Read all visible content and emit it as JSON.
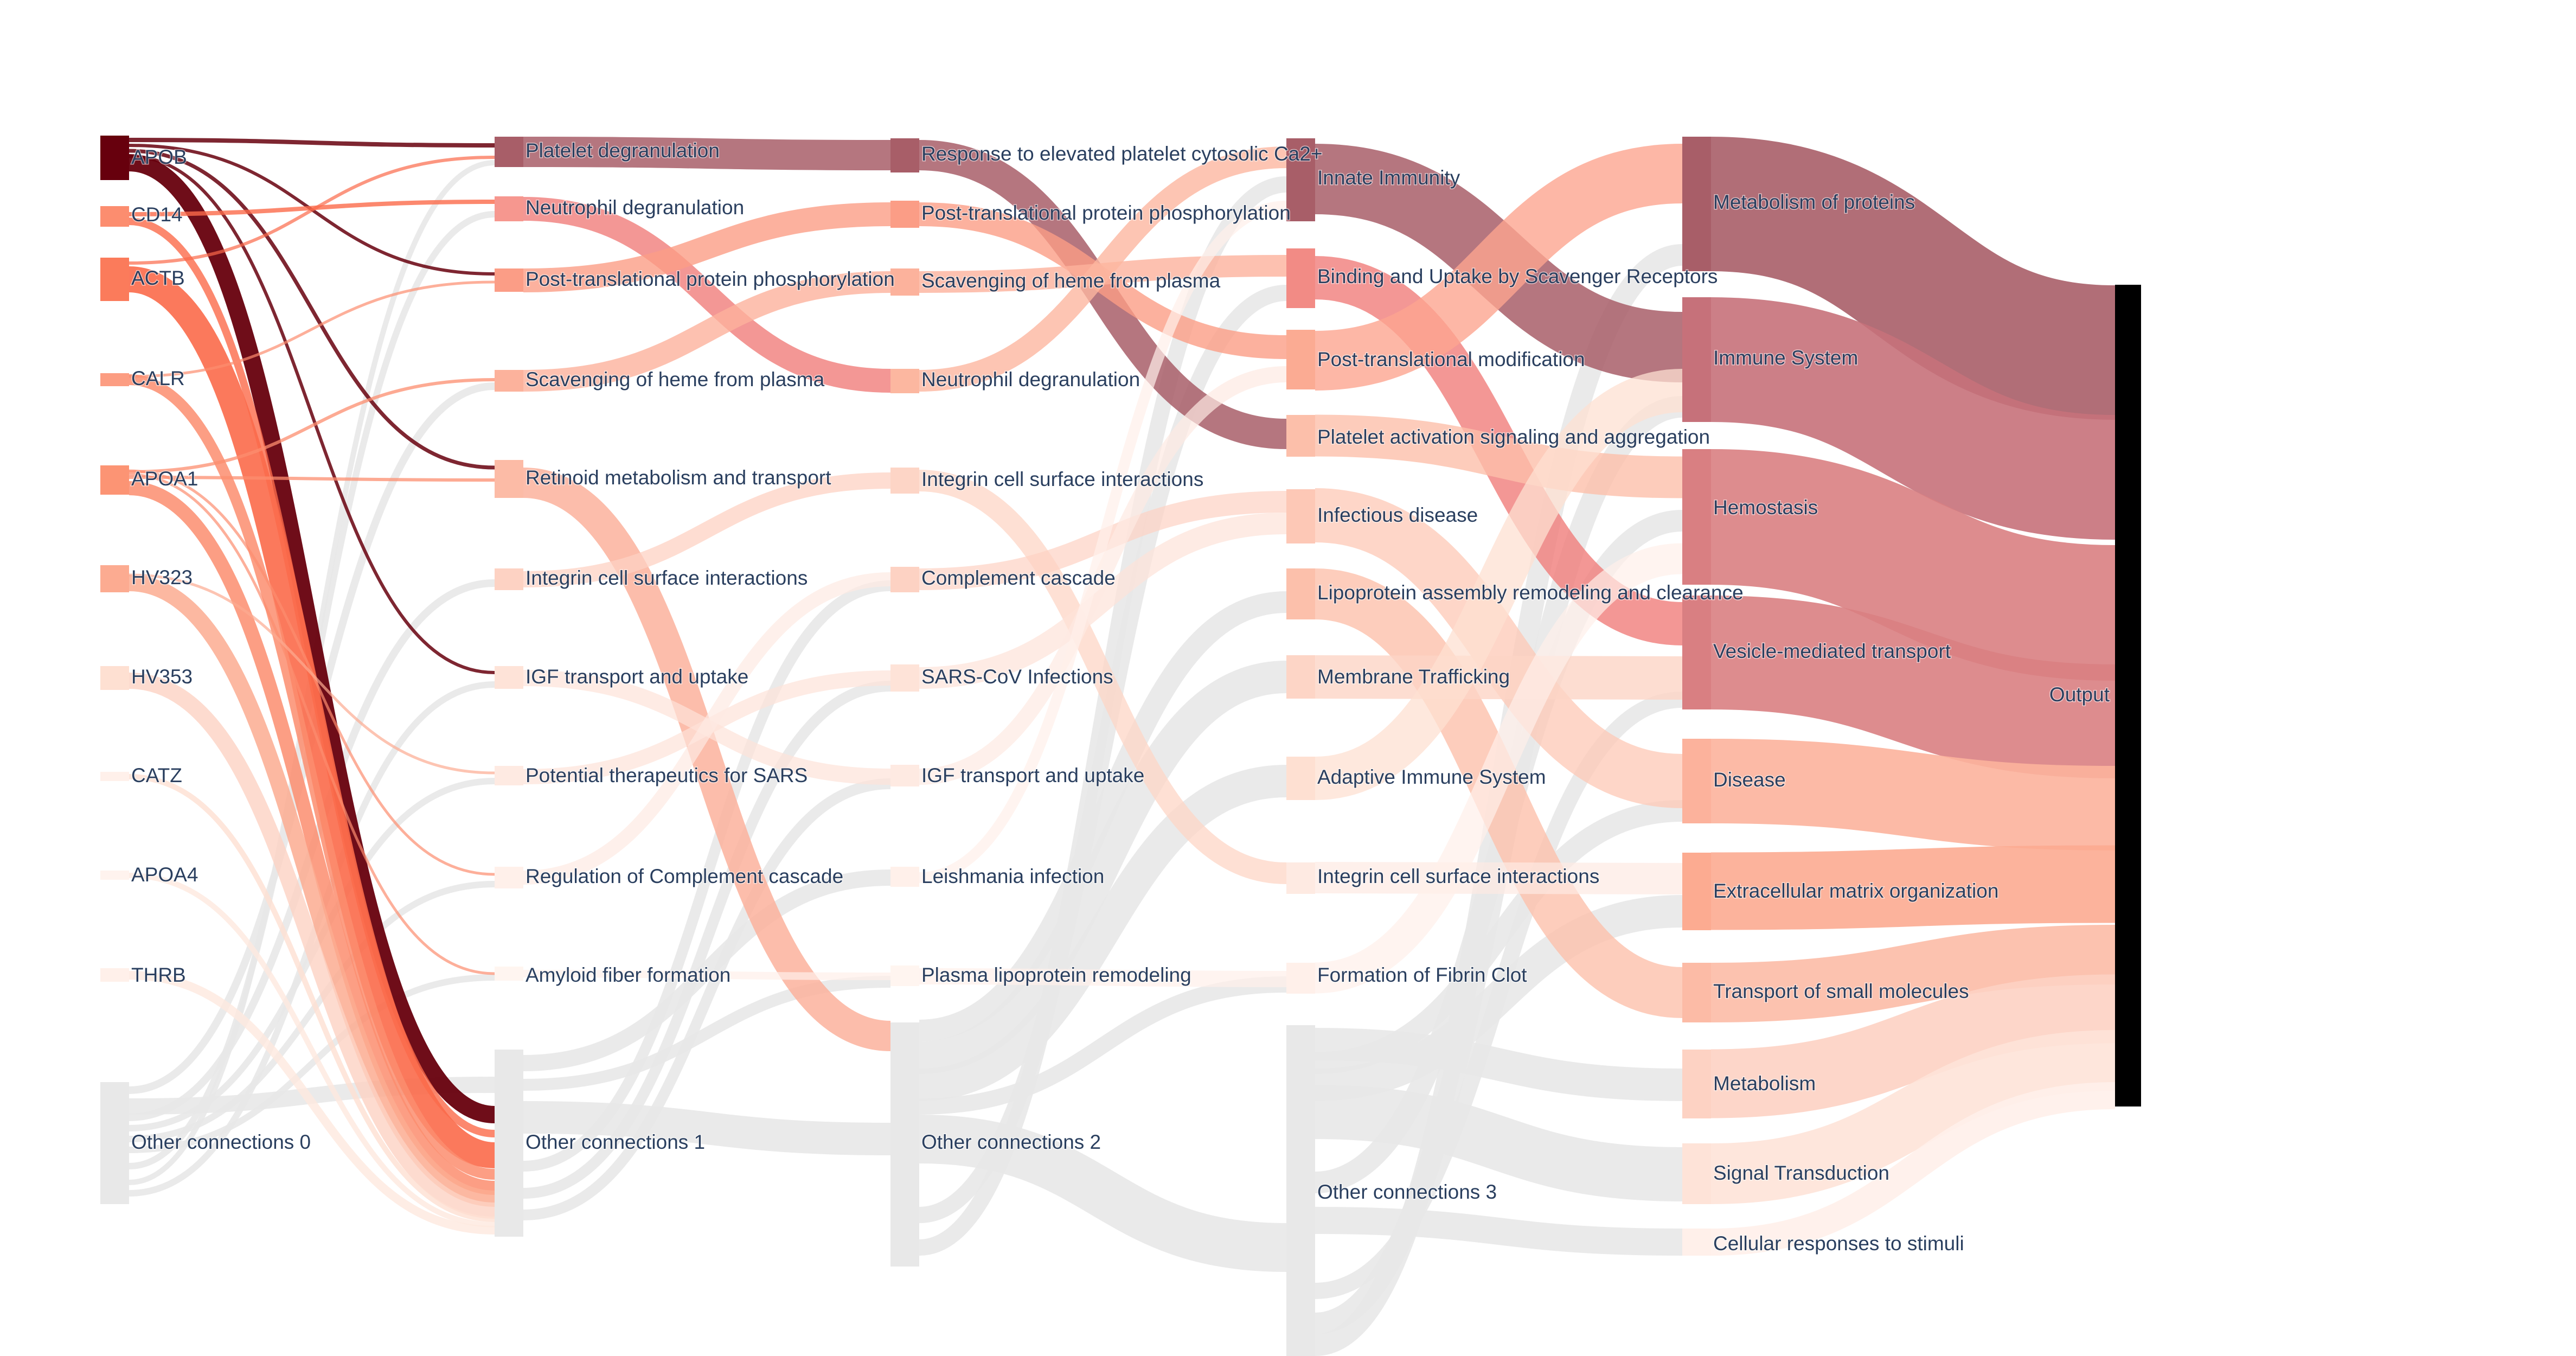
{
  "chart_data": {
    "type": "sankey",
    "colors": {
      "grey": "#e8e8e8",
      "output": "#000000",
      "label": "#2a3f5f"
    },
    "columns": [
      {
        "nodes": [
          {
            "label": "APOB",
            "color": "#67000d"
          },
          {
            "label": "CD14",
            "color": "#fc8d6f"
          },
          {
            "label": "ACTB",
            "color": "#fb7b5b"
          },
          {
            "label": "CALR",
            "color": "#fc9d82"
          },
          {
            "label": "APOA1",
            "color": "#fc9474"
          },
          {
            "label": "HV323",
            "color": "#fcab91"
          },
          {
            "label": "HV353",
            "color": "#fee0d2"
          },
          {
            "label": "CATZ",
            "color": "#fff0ea"
          },
          {
            "label": "APOA4",
            "color": "#fff3ee"
          },
          {
            "label": "THRB",
            "color": "#fff0ea"
          },
          {
            "label": "Other connections 0",
            "color": "#e8e8e8"
          }
        ]
      },
      {
        "nodes": [
          {
            "label": "Platelet degranulation",
            "color": "#a85e68"
          },
          {
            "label": "Neutrophil degranulation",
            "color": "#f6978f"
          },
          {
            "label": "Post-translational protein phosphorylation",
            "color": "#fb9d86"
          },
          {
            "label": "Scavenging of heme from plasma",
            "color": "#fcb29c"
          },
          {
            "label": "Retinoid metabolism and transport",
            "color": "#fcbba6"
          },
          {
            "label": "Integrin cell surface interactions",
            "color": "#fdd2c3"
          },
          {
            "label": "IGF transport and uptake",
            "color": "#fee3d8"
          },
          {
            "label": "Potential therapeutics for SARS",
            "color": "#feeae2"
          },
          {
            "label": "Regulation of Complement cascade",
            "color": "#fff0ea"
          },
          {
            "label": "Amyloid fiber formation",
            "color": "#fff5f0"
          },
          {
            "label": "Other connections 1",
            "color": "#e8e8e8"
          }
        ]
      },
      {
        "nodes": [
          {
            "label": "Response to elevated platelet cytosolic Ca2+",
            "color": "#a85e68"
          },
          {
            "label": "Post-translational protein phosphorylation",
            "color": "#fb9d86"
          },
          {
            "label": "Scavenging of heme from plasma",
            "color": "#fcb29c"
          },
          {
            "label": "Neutrophil degranulation",
            "color": "#fcb7a0"
          },
          {
            "label": "Integrin cell surface interactions",
            "color": "#fdd5c6"
          },
          {
            "label": "Complement cascade",
            "color": "#fdd2c3"
          },
          {
            "label": "SARS-CoV Infections",
            "color": "#fee3d8"
          },
          {
            "label": "IGF transport and uptake",
            "color": "#feeae2"
          },
          {
            "label": "Leishmania infection",
            "color": "#fff0ea"
          },
          {
            "label": "Plasma lipoprotein remodeling",
            "color": "#fff5f0"
          },
          {
            "label": "Other connections 2",
            "color": "#e8e8e8"
          }
        ]
      },
      {
        "nodes": [
          {
            "label": "Innate Immunity",
            "color": "#a85e68"
          },
          {
            "label": "Binding and Uptake by Scavenger Receptors",
            "color": "#f28b85"
          },
          {
            "label": "Post-translational modification",
            "color": "#fbab93"
          },
          {
            "label": "Platelet activation signaling and aggregation",
            "color": "#fcbfaa"
          },
          {
            "label": "Infectious disease",
            "color": "#fdc8b6"
          },
          {
            "label": "Lipoprotein assembly remodeling and clearance",
            "color": "#fcc0ab"
          },
          {
            "label": "Membrane Trafficking",
            "color": "#fdd5c6"
          },
          {
            "label": "Adaptive Immune System",
            "color": "#fee0d2"
          },
          {
            "label": "Integrin cell surface interactions",
            "color": "#feeae2"
          },
          {
            "label": "Formation of Fibrin Clot",
            "color": "#fff0ea"
          },
          {
            "label": "Other connections 3",
            "color": "#e8e8e8"
          }
        ]
      },
      {
        "nodes": [
          {
            "label": "Metabolism of proteins",
            "color": "#a85e68"
          },
          {
            "label": "Immune System",
            "color": "#c6717a"
          },
          {
            "label": "Hemostasis",
            "color": "#d97f82"
          },
          {
            "label": "Vesicle-mediated transport",
            "color": "#d97f82"
          },
          {
            "label": "Disease",
            "color": "#fcb29c"
          },
          {
            "label": "Extracellular matrix organization",
            "color": "#fcab91"
          },
          {
            "label": "Transport of small molecules",
            "color": "#fcbba6"
          },
          {
            "label": "Metabolism",
            "color": "#fdd2c3"
          },
          {
            "label": "Signal Transduction",
            "color": "#fee3d8"
          },
          {
            "label": "Cellular responses to stimuli",
            "color": "#fff0ea"
          }
        ]
      },
      {
        "nodes": [
          {
            "label": "Output",
            "color": "#000000"
          }
        ]
      }
    ]
  }
}
